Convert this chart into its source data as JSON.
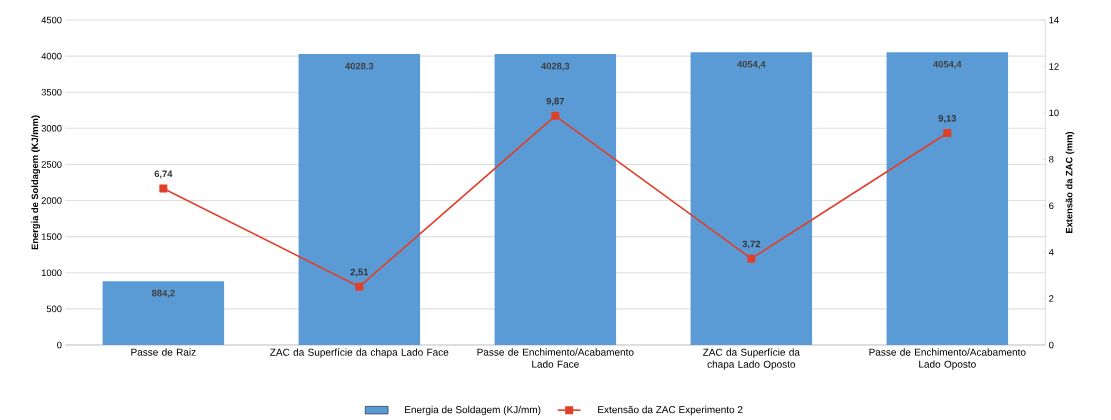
{
  "chart_data": {
    "type": "bar",
    "categories": [
      "Passe de Raiz",
      "ZAC da Superfície da chapa Lado Face",
      "Passe de Enchimento/Acabamento Lado Face",
      "ZAC da Superfície da chapa Lado Oposto",
      "Passe de Enchimento/Acabamento Lado Oposto"
    ],
    "series": [
      {
        "name": "Energia de Soldagem (KJ/mm)",
        "color": "#5b9bd5",
        "values": [
          884.2,
          4028.3,
          4028.3,
          4054.4,
          4054.4
        ],
        "value_labels": [
          "884,2",
          "4028.3",
          "4028,3",
          "4054,4",
          "4054,4"
        ]
      },
      {
        "name": "Extensão da ZAC Experimento 2",
        "type": "line",
        "axis": "y2",
        "color": "#e0402a",
        "marker": "square",
        "values": [
          6.74,
          2.51,
          9.87,
          3.72,
          9.13
        ],
        "value_labels": [
          "6,74",
          "2,51",
          "9,87",
          "3,72",
          "9,13"
        ]
      }
    ],
    "ylabel": "Energia de Soldagem (KJ/mm)",
    "y2label": "Extensão da ZAC (mm)",
    "ylim": [
      0,
      4500
    ],
    "yticks": [
      0,
      500,
      1000,
      1500,
      2000,
      2500,
      3000,
      3500,
      4000,
      4500
    ],
    "y2lim": [
      0,
      14
    ],
    "y2ticks": [
      0,
      2,
      4,
      6,
      8,
      10,
      12,
      14
    ],
    "grid": "y",
    "legend": "bottom"
  }
}
